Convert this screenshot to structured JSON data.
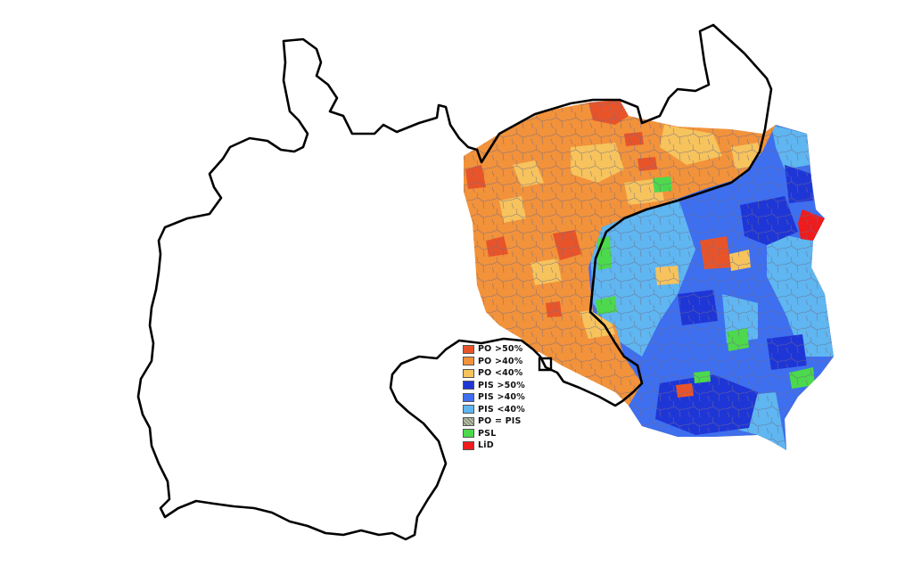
{
  "legend": [
    {
      "label": "PO >50%",
      "color": "#e8542a",
      "pattern": false
    },
    {
      "label": "PO >40%",
      "color": "#f2923a",
      "pattern": false
    },
    {
      "label": "PO <40%",
      "color": "#f6c35c",
      "pattern": false
    },
    {
      "label": "PIS >50%",
      "color": "#1f36d6",
      "pattern": false
    },
    {
      "label": "PIS >40%",
      "color": "#3d6ff0",
      "pattern": false
    },
    {
      "label": "PIS <40%",
      "color": "#5fb6f0",
      "pattern": false
    },
    {
      "label": "PO = PIS",
      "color": "#9aa28e",
      "pattern": true
    },
    {
      "label": "PSL",
      "color": "#4cd94c",
      "pattern": false
    },
    {
      "label": "LiD",
      "color": "#ee1c1c",
      "pattern": false
    }
  ],
  "colors": {
    "outline": "#000000",
    "district_lines": "#7f7f9a",
    "background": "#ffffff"
  }
}
